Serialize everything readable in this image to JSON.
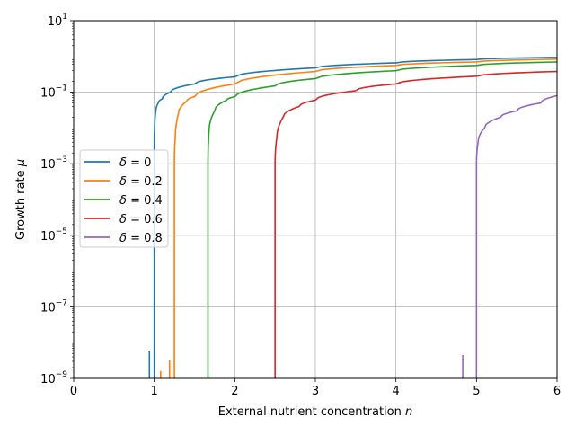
{
  "chart_data": {
    "type": "line",
    "title": "",
    "xlabel": "External nutrient concentration",
    "xlabel_symbol": "n",
    "ylabel": "Growth rate",
    "ylabel_symbol": "μ",
    "xlim": [
      0,
      6
    ],
    "ylim": [
      1e-09,
      10
    ],
    "yscale": "log",
    "grid": true,
    "legend_position": "center-left",
    "x_ticks": [
      0,
      1,
      2,
      3,
      4,
      5,
      6
    ],
    "x_tick_labels": [
      "0",
      "1",
      "2",
      "3",
      "4",
      "5",
      "6"
    ],
    "y_ticks": [
      1e-09,
      1e-07,
      1e-05,
      0.001,
      0.1,
      10
    ],
    "y_tick_labels": [
      {
        "base": "10",
        "exp": "−9"
      },
      {
        "base": "10",
        "exp": "−7"
      },
      {
        "base": "10",
        "exp": "−5"
      },
      {
        "base": "10",
        "exp": "−3"
      },
      {
        "base": "10",
        "exp": "−1"
      },
      {
        "base": "10",
        "exp": "1"
      }
    ],
    "series": [
      {
        "name": "δ = 0",
        "delta_label": "0",
        "color": "#1f77b4",
        "threshold": 1.0,
        "points": [
          [
            1.0,
            1e-09
          ],
          [
            1.0,
            0.003
          ],
          [
            1.005,
            0.01
          ],
          [
            1.02,
            0.03
          ],
          [
            1.05,
            0.05
          ],
          [
            1.1,
            0.065
          ],
          [
            1.2,
            0.1
          ],
          [
            1.5,
            0.17
          ],
          [
            2.0,
            0.27
          ],
          [
            3.0,
            0.48
          ],
          [
            4.0,
            0.66
          ],
          [
            5.0,
            0.82
          ],
          [
            6.0,
            0.94
          ]
        ],
        "spikes": [
          [
            0.94,
            6e-09
          ]
        ]
      },
      {
        "name": "δ = 0.2",
        "delta_label": "0.2",
        "color": "#ff7f0e",
        "threshold": 1.25,
        "points": [
          [
            1.25,
            1e-09
          ],
          [
            1.25,
            0.001
          ],
          [
            1.26,
            0.005
          ],
          [
            1.3,
            0.025
          ],
          [
            1.4,
            0.055
          ],
          [
            1.5,
            0.075
          ],
          [
            2.0,
            0.17
          ],
          [
            3.0,
            0.38
          ],
          [
            4.0,
            0.56
          ],
          [
            5.0,
            0.7
          ],
          [
            6.0,
            0.84
          ]
        ],
        "spikes": [
          [
            1.08,
            1.6e-09
          ],
          [
            1.19,
            3.2e-09
          ]
        ]
      },
      {
        "name": "δ = 0.4",
        "delta_label": "0.4",
        "color": "#2ca02c",
        "threshold": 1.667,
        "points": [
          [
            1.667,
            1e-09
          ],
          [
            1.667,
            0.001
          ],
          [
            1.68,
            0.008
          ],
          [
            1.75,
            0.03
          ],
          [
            1.9,
            0.06
          ],
          [
            2.0,
            0.075
          ],
          [
            2.5,
            0.15
          ],
          [
            3.0,
            0.24
          ],
          [
            4.0,
            0.4
          ],
          [
            5.0,
            0.56
          ],
          [
            6.0,
            0.7
          ]
        ],
        "spikes": []
      },
      {
        "name": "δ = 0.6",
        "delta_label": "0.6",
        "color": "#d62728",
        "threshold": 2.5,
        "points": [
          [
            2.5,
            1e-09
          ],
          [
            2.5,
            0.001
          ],
          [
            2.52,
            0.005
          ],
          [
            2.6,
            0.02
          ],
          [
            2.8,
            0.04
          ],
          [
            3.0,
            0.06
          ],
          [
            3.5,
            0.11
          ],
          [
            4.0,
            0.17
          ],
          [
            5.0,
            0.28
          ],
          [
            6.0,
            0.38
          ]
        ],
        "spikes": []
      },
      {
        "name": "δ = 0.8",
        "delta_label": "0.8",
        "color": "#9467bd",
        "threshold": 5.0,
        "points": [
          [
            5.0,
            1e-09
          ],
          [
            5.0,
            0.001
          ],
          [
            5.02,
            0.004
          ],
          [
            5.1,
            0.01
          ],
          [
            5.3,
            0.02
          ],
          [
            5.5,
            0.03
          ],
          [
            5.8,
            0.05
          ],
          [
            6.0,
            0.08
          ]
        ],
        "spikes": [
          [
            4.83,
            4.5e-09
          ]
        ]
      }
    ]
  }
}
